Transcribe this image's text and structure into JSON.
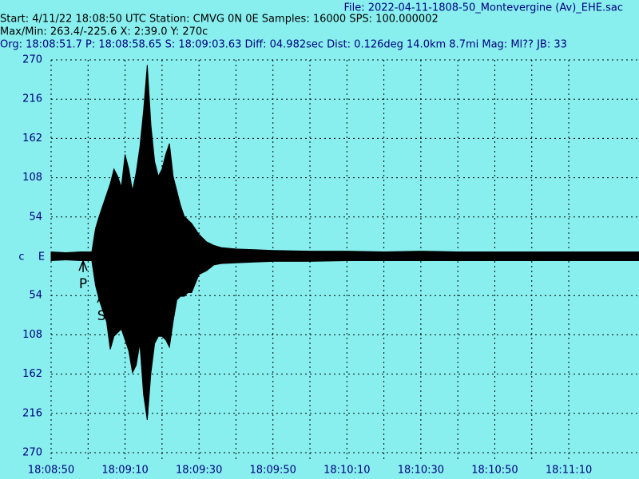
{
  "chart_data": {
    "type": "waveform",
    "header": {
      "file": "File: 2022-04-11-1808-50_Montevergine (Av)_EHE.sac",
      "start": "Start: 4/11/22 18:08:50 UTC Station: CMVG 0N 0E Samples: 16000  SPS: 100.000002",
      "maxmin": "Max/Min: 263.4/-225.6 X: 2:39.0 Y: 270c",
      "origin": "Org: 18:08:51.7 P: 18:08:58.65 S: 18:09:03.63 Diff: 04.982sec Dist: 0.126deg 14.0km 8.7mi  Mag: Ml?? JB: 33"
    },
    "channel": "c",
    "component": "E",
    "x": [
      0,
      4,
      8,
      11,
      12,
      13,
      14,
      15,
      16,
      17,
      18,
      19,
      20,
      21,
      22,
      23,
      24,
      25,
      26,
      27,
      28,
      29,
      30,
      31,
      32,
      33,
      34,
      35,
      36,
      37,
      38,
      40,
      42,
      44,
      46,
      50,
      55,
      60,
      70,
      80,
      90,
      100,
      110,
      120,
      130,
      140,
      150,
      159
    ],
    "series": [
      {
        "color": "#000000",
        "values": [
          6,
          5,
          6,
          6,
          38,
          55,
          70,
          85,
          100,
          120,
          110,
          95,
          140,
          120,
          90,
          115,
          150,
          200,
          263,
          180,
          130,
          110,
          120,
          140,
          155,
          110,
          90,
          70,
          55,
          50,
          45,
          30,
          20,
          15,
          12,
          10,
          9,
          8,
          7,
          7,
          6,
          7,
          6,
          6,
          6,
          6,
          6,
          6
        ]
      },
      {
        "color": "#000000",
        "values": [
          -6,
          -5,
          -6,
          -6,
          -40,
          -60,
          -75,
          -90,
          -128,
          -110,
          -105,
          -100,
          -115,
          -130,
          -160,
          -150,
          -120,
          -190,
          -225,
          -160,
          -120,
          -110,
          -110,
          -115,
          -125,
          -90,
          -60,
          -55,
          -55,
          -50,
          -50,
          -25,
          -20,
          -12,
          -10,
          -9,
          -8,
          -7,
          -7,
          -6,
          -6,
          -6,
          -6,
          -6,
          -6,
          -6,
          -6,
          -6
        ]
      }
    ],
    "markers": [
      {
        "label": "P",
        "x": 8.65
      },
      {
        "label": "S",
        "x": 13.63
      }
    ],
    "xlim": [
      0,
      159
    ],
    "ylim": [
      -270,
      270
    ],
    "xticks": [
      {
        "value": 0,
        "label": "18:08:50"
      },
      {
        "value": 20,
        "label": "18:09:10"
      },
      {
        "value": 40,
        "label": "18:09:30"
      },
      {
        "value": 60,
        "label": "18:09:50"
      },
      {
        "value": 80,
        "label": "18:10:10"
      },
      {
        "value": 100,
        "label": "18:10:30"
      },
      {
        "value": 120,
        "label": "18:10:50"
      },
      {
        "value": 140,
        "label": "18:11:10"
      }
    ],
    "yticks": [
      270,
      216,
      162,
      108,
      54,
      {
        "value": -54,
        "label": "54"
      },
      {
        "value": -108,
        "label": "108"
      },
      {
        "value": -162,
        "label": "162"
      },
      {
        "value": -216,
        "label": "216"
      },
      {
        "value": -270,
        "label": "270"
      }
    ],
    "grid": true
  }
}
